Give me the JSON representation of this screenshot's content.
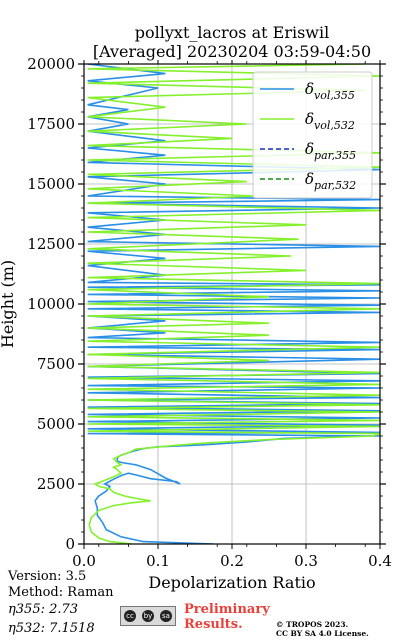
{
  "chart_data": {
    "type": "line",
    "title": "pollyxt_lacros at Eriswil",
    "subtitle": "[Averaged] 20230204 03:59-04:50",
    "xlabel": "Depolarization Ratio",
    "ylabel": "Height (m)",
    "xlim": [
      0,
      0.4
    ],
    "ylim": [
      0,
      20000
    ],
    "xticks": [
      "0.0",
      "0.1",
      "0.2",
      "0.3",
      "0.4"
    ],
    "yticks": [
      "0",
      "2500",
      "5000",
      "7500",
      "10000",
      "12500",
      "15000",
      "17500",
      "20000"
    ],
    "grid": true,
    "legend_position": "top-right",
    "legend": [
      {
        "label": "δvol,355",
        "color": "#2a8fe6",
        "style": "solid"
      },
      {
        "label": "δvol,532",
        "color": "#85f02d",
        "style": "solid"
      },
      {
        "label": "δpar,355",
        "color": "#1c2fc2",
        "style": "dashed"
      },
      {
        "label": "δpar,532",
        "color": "#1a8a1a",
        "style": "dashed"
      }
    ],
    "series": [
      {
        "name": "δvol,355",
        "color": "#2a8fe6",
        "points": [
          [
            0.175,
            0
          ],
          [
            0.08,
            100
          ],
          [
            0.05,
            300
          ],
          [
            0.03,
            600
          ],
          [
            0.025,
            900
          ],
          [
            0.018,
            1200
          ],
          [
            0.018,
            1500
          ],
          [
            0.015,
            1800
          ],
          [
            0.02,
            2000
          ],
          [
            0.03,
            2200
          ],
          [
            0.035,
            2400
          ],
          [
            0.028,
            2500
          ],
          [
            0.04,
            2700
          ],
          [
            0.05,
            2850
          ],
          [
            0.06,
            2950
          ],
          [
            0.07,
            2880
          ],
          [
            0.09,
            2720
          ],
          [
            0.125,
            2600
          ],
          [
            0.13,
            2500
          ],
          [
            0.11,
            2750
          ],
          [
            0.09,
            3100
          ],
          [
            0.07,
            3300
          ],
          [
            0.05,
            3400
          ],
          [
            0.045,
            3450
          ],
          [
            0.045,
            3600
          ],
          [
            0.05,
            3700
          ],
          [
            0.06,
            3800
          ],
          [
            0.07,
            3900
          ],
          [
            0.085,
            4000
          ],
          [
            0.1,
            4050
          ],
          [
            0.14,
            4100
          ],
          [
            0.17,
            4150
          ],
          [
            0.22,
            4250
          ],
          [
            0.27,
            4400
          ],
          [
            0.38,
            4500
          ],
          [
            0.4,
            4500
          ],
          [
            0.005,
            4600
          ],
          [
            0.4,
            4650
          ],
          [
            0.005,
            4800
          ],
          [
            0.4,
            4950
          ],
          [
            0.005,
            5100
          ],
          [
            0.4,
            5250
          ],
          [
            0.005,
            5400
          ],
          [
            0.4,
            5550
          ],
          [
            0.005,
            5700
          ],
          [
            0.4,
            5850
          ],
          [
            0.005,
            6000
          ],
          [
            0.4,
            6100
          ],
          [
            0.005,
            6300
          ],
          [
            0.4,
            6500
          ],
          [
            0.005,
            6600
          ],
          [
            0.4,
            6800
          ],
          [
            0.005,
            6950
          ],
          [
            0.4,
            7100
          ],
          [
            0.005,
            7400
          ],
          [
            0.4,
            7700
          ],
          [
            0.005,
            7900
          ],
          [
            0.4,
            8100
          ],
          [
            0.005,
            8200
          ],
          [
            0.4,
            8400
          ],
          [
            0.005,
            8600
          ],
          [
            0.11,
            8800
          ],
          [
            0.005,
            9000
          ],
          [
            0.11,
            9300
          ],
          [
            0.005,
            9500
          ],
          [
            0.4,
            9650
          ],
          [
            0.005,
            9800
          ],
          [
            0.4,
            9950
          ],
          [
            0.005,
            10100
          ],
          [
            0.4,
            10250
          ],
          [
            0.005,
            10400
          ],
          [
            0.4,
            10550
          ],
          [
            0.005,
            10700
          ],
          [
            0.4,
            10800
          ],
          [
            0.005,
            10900
          ],
          [
            0.11,
            11200
          ],
          [
            0.005,
            11600
          ],
          [
            0.11,
            11900
          ],
          [
            0.005,
            12200
          ],
          [
            0.4,
            12400
          ],
          [
            0.005,
            12600
          ],
          [
            0.11,
            12900
          ],
          [
            0.005,
            13200
          ],
          [
            0.11,
            13500
          ],
          [
            0.005,
            13800
          ],
          [
            0.4,
            14000
          ],
          [
            0.005,
            14200
          ],
          [
            0.4,
            14350
          ],
          [
            0.005,
            14500
          ],
          [
            0.11,
            15000
          ],
          [
            0.005,
            15300
          ],
          [
            0.4,
            15600
          ],
          [
            0.005,
            15900
          ],
          [
            0.11,
            16200
          ],
          [
            0.005,
            16500
          ],
          [
            0.11,
            16800
          ],
          [
            0.005,
            17200
          ],
          [
            0.06,
            17500
          ],
          [
            0.005,
            17800
          ],
          [
            0.06,
            18100
          ],
          [
            0.005,
            18300
          ],
          [
            0.1,
            19000
          ],
          [
            0.005,
            19300
          ],
          [
            0.11,
            19600
          ],
          [
            0.005,
            20000
          ]
        ]
      },
      {
        "name": "δvol,532",
        "color": "#85f02d",
        "points": [
          [
            0.065,
            0
          ],
          [
            0.035,
            100
          ],
          [
            0.02,
            250
          ],
          [
            0.01,
            500
          ],
          [
            0.007,
            800
          ],
          [
            0.01,
            1100
          ],
          [
            0.02,
            1400
          ],
          [
            0.04,
            1600
          ],
          [
            0.06,
            1700
          ],
          [
            0.09,
            1800
          ],
          [
            0.07,
            1900
          ],
          [
            0.055,
            2000
          ],
          [
            0.04,
            2150
          ],
          [
            0.035,
            2300
          ],
          [
            0.02,
            2400
          ],
          [
            0.015,
            2500
          ],
          [
            0.028,
            2650
          ],
          [
            0.04,
            2800
          ],
          [
            0.05,
            2950
          ],
          [
            0.045,
            3100
          ],
          [
            0.04,
            3200
          ],
          [
            0.05,
            3300
          ],
          [
            0.045,
            3400
          ],
          [
            0.04,
            3550
          ],
          [
            0.05,
            3700
          ],
          [
            0.06,
            3800
          ],
          [
            0.07,
            3950
          ],
          [
            0.12,
            4100
          ],
          [
            0.16,
            4200
          ],
          [
            0.25,
            4350
          ],
          [
            0.39,
            4500
          ],
          [
            0.4,
            4600
          ],
          [
            0.005,
            4700
          ],
          [
            0.4,
            4900
          ],
          [
            0.005,
            5000
          ],
          [
            0.4,
            5150
          ],
          [
            0.005,
            5300
          ],
          [
            0.4,
            5500
          ],
          [
            0.005,
            5650
          ],
          [
            0.4,
            5800
          ],
          [
            0.005,
            6000
          ],
          [
            0.4,
            6200
          ],
          [
            0.005,
            6450
          ],
          [
            0.4,
            6650
          ],
          [
            0.005,
            6900
          ],
          [
            0.4,
            7150
          ],
          [
            0.005,
            7400
          ],
          [
            0.25,
            7650
          ],
          [
            0.005,
            7900
          ],
          [
            0.4,
            8200
          ],
          [
            0.005,
            8450
          ],
          [
            0.25,
            8700
          ],
          [
            0.005,
            9000
          ],
          [
            0.25,
            9200
          ],
          [
            0.005,
            9500
          ],
          [
            0.4,
            9800
          ],
          [
            0.005,
            10000
          ],
          [
            0.25,
            10300
          ],
          [
            0.005,
            10600
          ],
          [
            0.4,
            10850
          ],
          [
            0.005,
            11100
          ],
          [
            0.3,
            11400
          ],
          [
            0.005,
            11700
          ],
          [
            0.28,
            12000
          ],
          [
            0.005,
            12300
          ],
          [
            0.29,
            12700
          ],
          [
            0.005,
            13000
          ],
          [
            0.3,
            13300
          ],
          [
            0.005,
            13600
          ],
          [
            0.4,
            13900
          ],
          [
            0.005,
            14200
          ],
          [
            0.23,
            14500
          ],
          [
            0.005,
            14800
          ],
          [
            0.22,
            15100
          ],
          [
            0.005,
            15400
          ],
          [
            0.4,
            15700
          ],
          [
            0.005,
            16000
          ],
          [
            0.4,
            16300
          ],
          [
            0.005,
            16600
          ],
          [
            0.2,
            16900
          ],
          [
            0.005,
            17200
          ],
          [
            0.22,
            17500
          ],
          [
            0.005,
            17800
          ],
          [
            0.11,
            18200
          ],
          [
            0.005,
            18600
          ],
          [
            0.38,
            18900
          ],
          [
            0.005,
            19200
          ],
          [
            0.4,
            19500
          ],
          [
            0.005,
            19800
          ],
          [
            0.38,
            20000
          ]
        ]
      }
    ]
  },
  "info": {
    "version": "Version: 3.5",
    "method": "Method: Raman",
    "eta355": "η355:   2.73",
    "eta532": "η532: 7.1518"
  },
  "license_badge": [
    "cc",
    "by",
    "sa"
  ],
  "preliminary": {
    "line1": "Preliminary",
    "line2": "Results."
  },
  "copyright": {
    "line1": "© TROPOS 2023.",
    "line2": "CC BY SA 4.0 License."
  }
}
